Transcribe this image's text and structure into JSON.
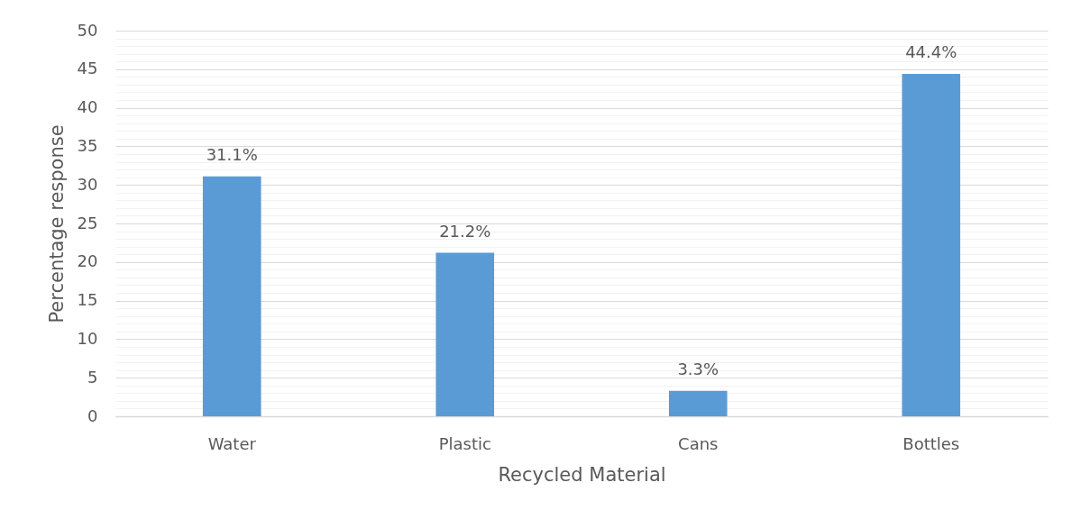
{
  "chart_data": {
    "type": "bar",
    "xlabel": "Recycled Material",
    "ylabel": "Percentage response",
    "categories": [
      "Water",
      "Plastic",
      "Cans",
      "Bottles"
    ],
    "values": [
      31.1,
      21.2,
      3.3,
      44.4
    ],
    "color": "#5b9bd5",
    "value_labels": [
      "31.1%",
      "21.2%",
      "3.3%",
      "44.4%"
    ],
    "ylim": [
      0,
      50
    ],
    "yticks": [
      0,
      {
        "value": 1,
        "label": null
      },
      {
        "value": 2,
        "label": null
      },
      {
        "value": 3,
        "label": null
      },
      {
        "value": 4,
        "label": null
      },
      5,
      {
        "value": 6,
        "label": null
      },
      {
        "value": 7,
        "label": null
      },
      {
        "value": 8,
        "label": null
      },
      {
        "value": 9,
        "label": null
      },
      10,
      {
        "value": 11,
        "label": null
      },
      {
        "value": 12,
        "label": null
      },
      {
        "value": 13,
        "label": null
      },
      {
        "value": 14,
        "label": null
      },
      15,
      {
        "value": 16,
        "label": null
      },
      {
        "value": 17,
        "label": null
      },
      {
        "value": 18,
        "label": null
      },
      {
        "value": 19,
        "label": null
      },
      20,
      {
        "value": 21,
        "label": null
      },
      {
        "value": 22,
        "label": null
      },
      {
        "value": 23,
        "label": null
      },
      {
        "value": 24,
        "label": null
      },
      25,
      {
        "value": 26,
        "label": null
      },
      {
        "value": 27,
        "label": null
      },
      {
        "value": 28,
        "label": null
      },
      {
        "value": 29,
        "label": null
      },
      30,
      {
        "value": 31,
        "label": null
      },
      {
        "value": 32,
        "label": null
      },
      {
        "value": 33,
        "label": null
      },
      {
        "value": 34,
        "label": null
      },
      35,
      {
        "value": 36,
        "label": null
      },
      {
        "value": 37,
        "label": null
      },
      {
        "value": 38,
        "label": null
      },
      {
        "value": 39,
        "label": null
      },
      40,
      {
        "value": 41,
        "label": null
      },
      {
        "value": 42,
        "label": null
      },
      {
        "value": 43,
        "label": null
      },
      {
        "value": 44,
        "label": null
      },
      45,
      {
        "value": 46,
        "label": null
      },
      {
        "value": 47,
        "label": null
      },
      {
        "value": 48,
        "label": null
      },
      {
        "value": 49,
        "label": null
      },
      50
    ],
    "grid": "y"
  }
}
